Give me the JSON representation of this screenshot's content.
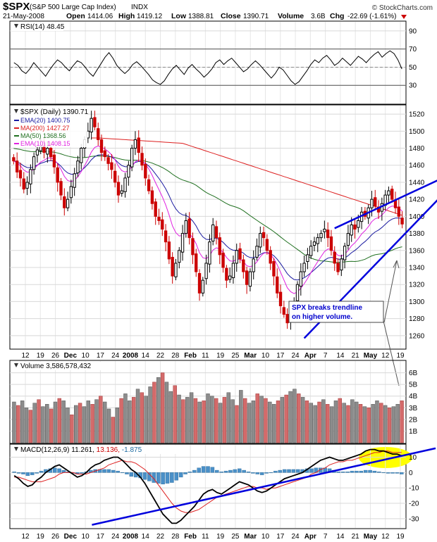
{
  "header": {
    "symbol": "$SPX",
    "name": "(S&P 500 Large Cap Index)",
    "exchange": "INDX",
    "watermark": "© StockCharts.com",
    "date": "21-May-2008",
    "open_label": "Open",
    "open": "1414.06",
    "high_label": "High",
    "high": "1419.12",
    "low_label": "Low",
    "low": "1388.81",
    "close_label": "Close",
    "close": "1390.71",
    "volume_label": "Volume",
    "volume": "3.6B",
    "chg_label": "Chg",
    "chg": "-22.69 (-1.61%)"
  },
  "colors": {
    "grid": "#d8d8d8",
    "up": "#000000",
    "down": "#cc0000",
    "ema20": "#1a1aa0",
    "ma200": "#dd2020",
    "ma50": "#207020",
    "ema10": "#e020e0",
    "trendline": "#0000dd",
    "volume_up": "#8c8c8c",
    "volume_down": "#d46a6a",
    "macd_hist": "#4a90c8",
    "highlight": "#ffff00"
  },
  "annotation": {
    "line1": "SPX breaks trendline",
    "line2": "on higher volume."
  },
  "chart_data": [
    {
      "panel": "rsi",
      "type": "line",
      "title": "RSI(14) 48.45",
      "ylim": [
        10,
        100
      ],
      "yticks": [
        30,
        50,
        70,
        90
      ],
      "levels": [
        30,
        50,
        70
      ],
      "values": [
        55,
        52,
        46,
        43,
        48,
        55,
        50,
        45,
        40,
        47,
        53,
        58,
        55,
        50,
        46,
        52,
        57,
        55,
        50,
        44,
        40,
        47,
        54,
        61,
        66,
        60,
        52,
        47,
        43,
        47,
        53,
        56,
        52,
        47,
        42,
        36,
        33,
        31,
        35,
        42,
        48,
        52,
        47,
        42,
        49,
        53,
        48,
        44,
        39,
        43,
        48,
        55,
        58,
        53,
        57,
        60,
        55,
        50,
        45,
        48,
        53,
        57,
        53,
        48,
        43,
        38,
        43,
        50,
        47,
        41,
        35,
        31,
        34,
        40,
        46,
        53,
        58,
        55,
        60,
        63,
        58,
        52,
        55,
        60,
        56,
        52,
        57,
        62,
        59,
        55,
        60,
        64,
        67,
        61,
        65,
        68,
        65,
        58,
        48
      ]
    },
    {
      "panel": "price",
      "type": "candlestick",
      "title": "$SPX (Daily) 1390.71",
      "ylim": [
        1245,
        1530
      ],
      "yticks": [
        1260,
        1280,
        1300,
        1320,
        1340,
        1360,
        1380,
        1400,
        1420,
        1440,
        1460,
        1480,
        1500,
        1520
      ],
      "legend": [
        {
          "key": "ema20",
          "label": "EMA(20) 1400.75"
        },
        {
          "key": "ma200",
          "label": "MA(200) 1427.27"
        },
        {
          "key": "ma50",
          "label": "MA(50) 1368.56"
        },
        {
          "key": "ema10",
          "label": "EMA(10) 1408.15"
        }
      ],
      "closes": [
        1465,
        1452,
        1445,
        1432,
        1440,
        1455,
        1470,
        1478,
        1482,
        1475,
        1480,
        1470,
        1458,
        1440,
        1425,
        1410,
        1420,
        1435,
        1450,
        1465,
        1480,
        1490,
        1500,
        1515,
        1505,
        1490,
        1475,
        1470,
        1462,
        1455,
        1440,
        1425,
        1430,
        1445,
        1460,
        1480,
        1490,
        1475,
        1460,
        1445,
        1430,
        1415,
        1400,
        1395,
        1385,
        1370,
        1350,
        1330,
        1345,
        1360,
        1380,
        1395,
        1375,
        1355,
        1335,
        1310,
        1325,
        1345,
        1370,
        1390,
        1375,
        1355,
        1340,
        1325,
        1330,
        1345,
        1360,
        1350,
        1335,
        1320,
        1335,
        1350,
        1365,
        1380,
        1375,
        1360,
        1345,
        1330,
        1310,
        1295,
        1285,
        1275,
        1290,
        1300,
        1320,
        1335,
        1345,
        1355,
        1365,
        1370,
        1375,
        1380,
        1385,
        1375,
        1360,
        1345,
        1335,
        1350,
        1365,
        1380,
        1390,
        1385,
        1395,
        1405,
        1400,
        1410,
        1420,
        1412,
        1405,
        1415,
        1425,
        1430,
        1420,
        1410,
        1400,
        1391
      ],
      "trendlines": [
        {
          "name": "upper-channel",
          "from": [
            95,
            1386
          ],
          "to": [
            126,
            1447
          ]
        },
        {
          "name": "lower-trendline",
          "from": [
            86,
            1257
          ],
          "to": [
            126,
            1430
          ]
        }
      ]
    },
    {
      "panel": "volume",
      "type": "bar",
      "title": "Volume 3,586,578,432",
      "unit": "B",
      "ylim": [
        0,
        7
      ],
      "yticks": [
        1,
        2,
        3,
        4,
        5,
        6
      ],
      "ytick_labels": [
        "1B",
        "2B",
        "3B",
        "4B",
        "5B",
        "6B"
      ],
      "values": [
        3.5,
        3.2,
        3.6,
        3.0,
        2.8,
        3.4,
        3.7,
        3.1,
        3.3,
        2.9,
        3.5,
        3.8,
        3.6,
        3.0,
        2.4,
        3.2,
        3.4,
        3.1,
        3.6,
        3.3,
        3.7,
        4.0,
        3.5,
        2.9,
        2.2,
        3.0,
        3.8,
        4.2,
        3.6,
        3.9,
        4.6,
        4.3,
        4.0,
        4.8,
        5.2,
        5.6,
        6.0,
        5.2,
        4.4,
        4.9,
        4.1,
        3.7,
        3.9,
        4.3,
        3.8,
        3.5,
        3.6,
        4.2,
        4.0,
        3.8,
        3.4,
        3.9,
        4.3,
        3.7,
        3.2,
        4.5,
        3.8,
        3.4,
        3.6,
        4.2,
        4.0,
        3.8,
        3.5,
        3.3,
        3.6,
        3.9,
        4.1,
        4.4,
        4.6,
        4.2,
        3.9,
        3.6,
        3.4,
        3.2,
        3.5,
        3.7,
        3.3,
        3.1,
        3.6,
        3.8,
        3.4,
        3.2,
        3.7,
        3.5,
        3.3,
        3.1,
        3.0,
        3.3,
        3.6,
        3.4,
        3.2,
        3.0,
        3.1,
        3.3,
        3.6
      ]
    },
    {
      "panel": "macd",
      "type": "line",
      "title_main": "MACD(12,26,9) 11.261,",
      "title_signal": " 13.136,",
      "title_hist": " -1.875",
      "ylim": [
        -36,
        18
      ],
      "yticks": [
        -30,
        -20,
        -10,
        0,
        10
      ],
      "macd": [
        -2,
        -4,
        -7,
        -9,
        -8,
        -5,
        -3,
        0,
        2,
        4,
        5,
        3,
        1,
        -1,
        -3,
        -2,
        0,
        3,
        5,
        6,
        8,
        9,
        10,
        10,
        8,
        5,
        2,
        0,
        -3,
        -7,
        -12,
        -17,
        -22,
        -27,
        -30,
        -33,
        -33,
        -31,
        -28,
        -25,
        -22,
        -18,
        -14,
        -12,
        -11,
        -13,
        -14,
        -12,
        -10,
        -8,
        -6,
        -7,
        -8,
        -10,
        -12,
        -13,
        -12,
        -10,
        -8,
        -6,
        -4,
        -3,
        -2,
        -1,
        0,
        2,
        4,
        6,
        8,
        9,
        10,
        9,
        8,
        8,
        9,
        10,
        11,
        12,
        14,
        15,
        15,
        14,
        14,
        13,
        12,
        12,
        11
      ],
      "signal": [
        -3,
        -3,
        -4,
        -5,
        -6,
        -6,
        -6,
        -5,
        -4,
        -3,
        -1,
        0,
        0,
        0,
        -1,
        -1,
        -1,
        0,
        1,
        2,
        3,
        5,
        6,
        7,
        8,
        7,
        7,
        6,
        4,
        2,
        -1,
        -4,
        -8,
        -12,
        -16,
        -20,
        -23,
        -25,
        -26,
        -26,
        -25,
        -24,
        -22,
        -20,
        -18,
        -16,
        -15,
        -14,
        -13,
        -12,
        -11,
        -10,
        -9,
        -9,
        -10,
        -10,
        -11,
        -10,
        -10,
        -9,
        -8,
        -7,
        -6,
        -5,
        -4,
        -3,
        -1,
        0,
        2,
        3,
        5,
        6,
        7,
        7,
        8,
        8,
        9,
        10,
        11,
        12,
        13,
        13,
        14,
        14,
        13,
        13,
        13
      ],
      "histogram": [
        1,
        -1,
        -2,
        -4,
        -3,
        -1,
        2,
        4,
        5,
        6,
        5,
        3,
        1,
        -1,
        -2,
        -1,
        1,
        3,
        4,
        4,
        4,
        4,
        3,
        2,
        0,
        -2,
        -5,
        -6,
        -7,
        -9,
        -11,
        -13,
        -14,
        -15,
        -14,
        -13,
        -10,
        -6,
        -2,
        1,
        3,
        6,
        8,
        8,
        7,
        3,
        1,
        2,
        3,
        4,
        5,
        3,
        1,
        -1,
        -2,
        -3,
        -1,
        0,
        2,
        3,
        4,
        4,
        4,
        4,
        4,
        5,
        5,
        6,
        6,
        6,
        5,
        3,
        1,
        1,
        1,
        2,
        2,
        2,
        3,
        3,
        2,
        1,
        0,
        -1,
        -1,
        -1,
        -2
      ],
      "trendlines": [
        {
          "name": "macd-trendline",
          "from": [
            23,
            -34
          ],
          "to": [
            115,
            11
          ]
        }
      ]
    }
  ],
  "x_axis": {
    "labels": [
      "12",
      "19",
      "26",
      "Dec",
      "10",
      "17",
      "24",
      "2008",
      "14",
      "22",
      "28",
      "Feb",
      "11",
      "19",
      "25",
      "Mar",
      "10",
      "17",
      "24",
      "Apr",
      "7",
      "14",
      "21",
      "May",
      "12",
      "19"
    ],
    "bold": [
      "Dec",
      "2008",
      "Feb",
      "Mar",
      "Apr",
      "May"
    ]
  }
}
